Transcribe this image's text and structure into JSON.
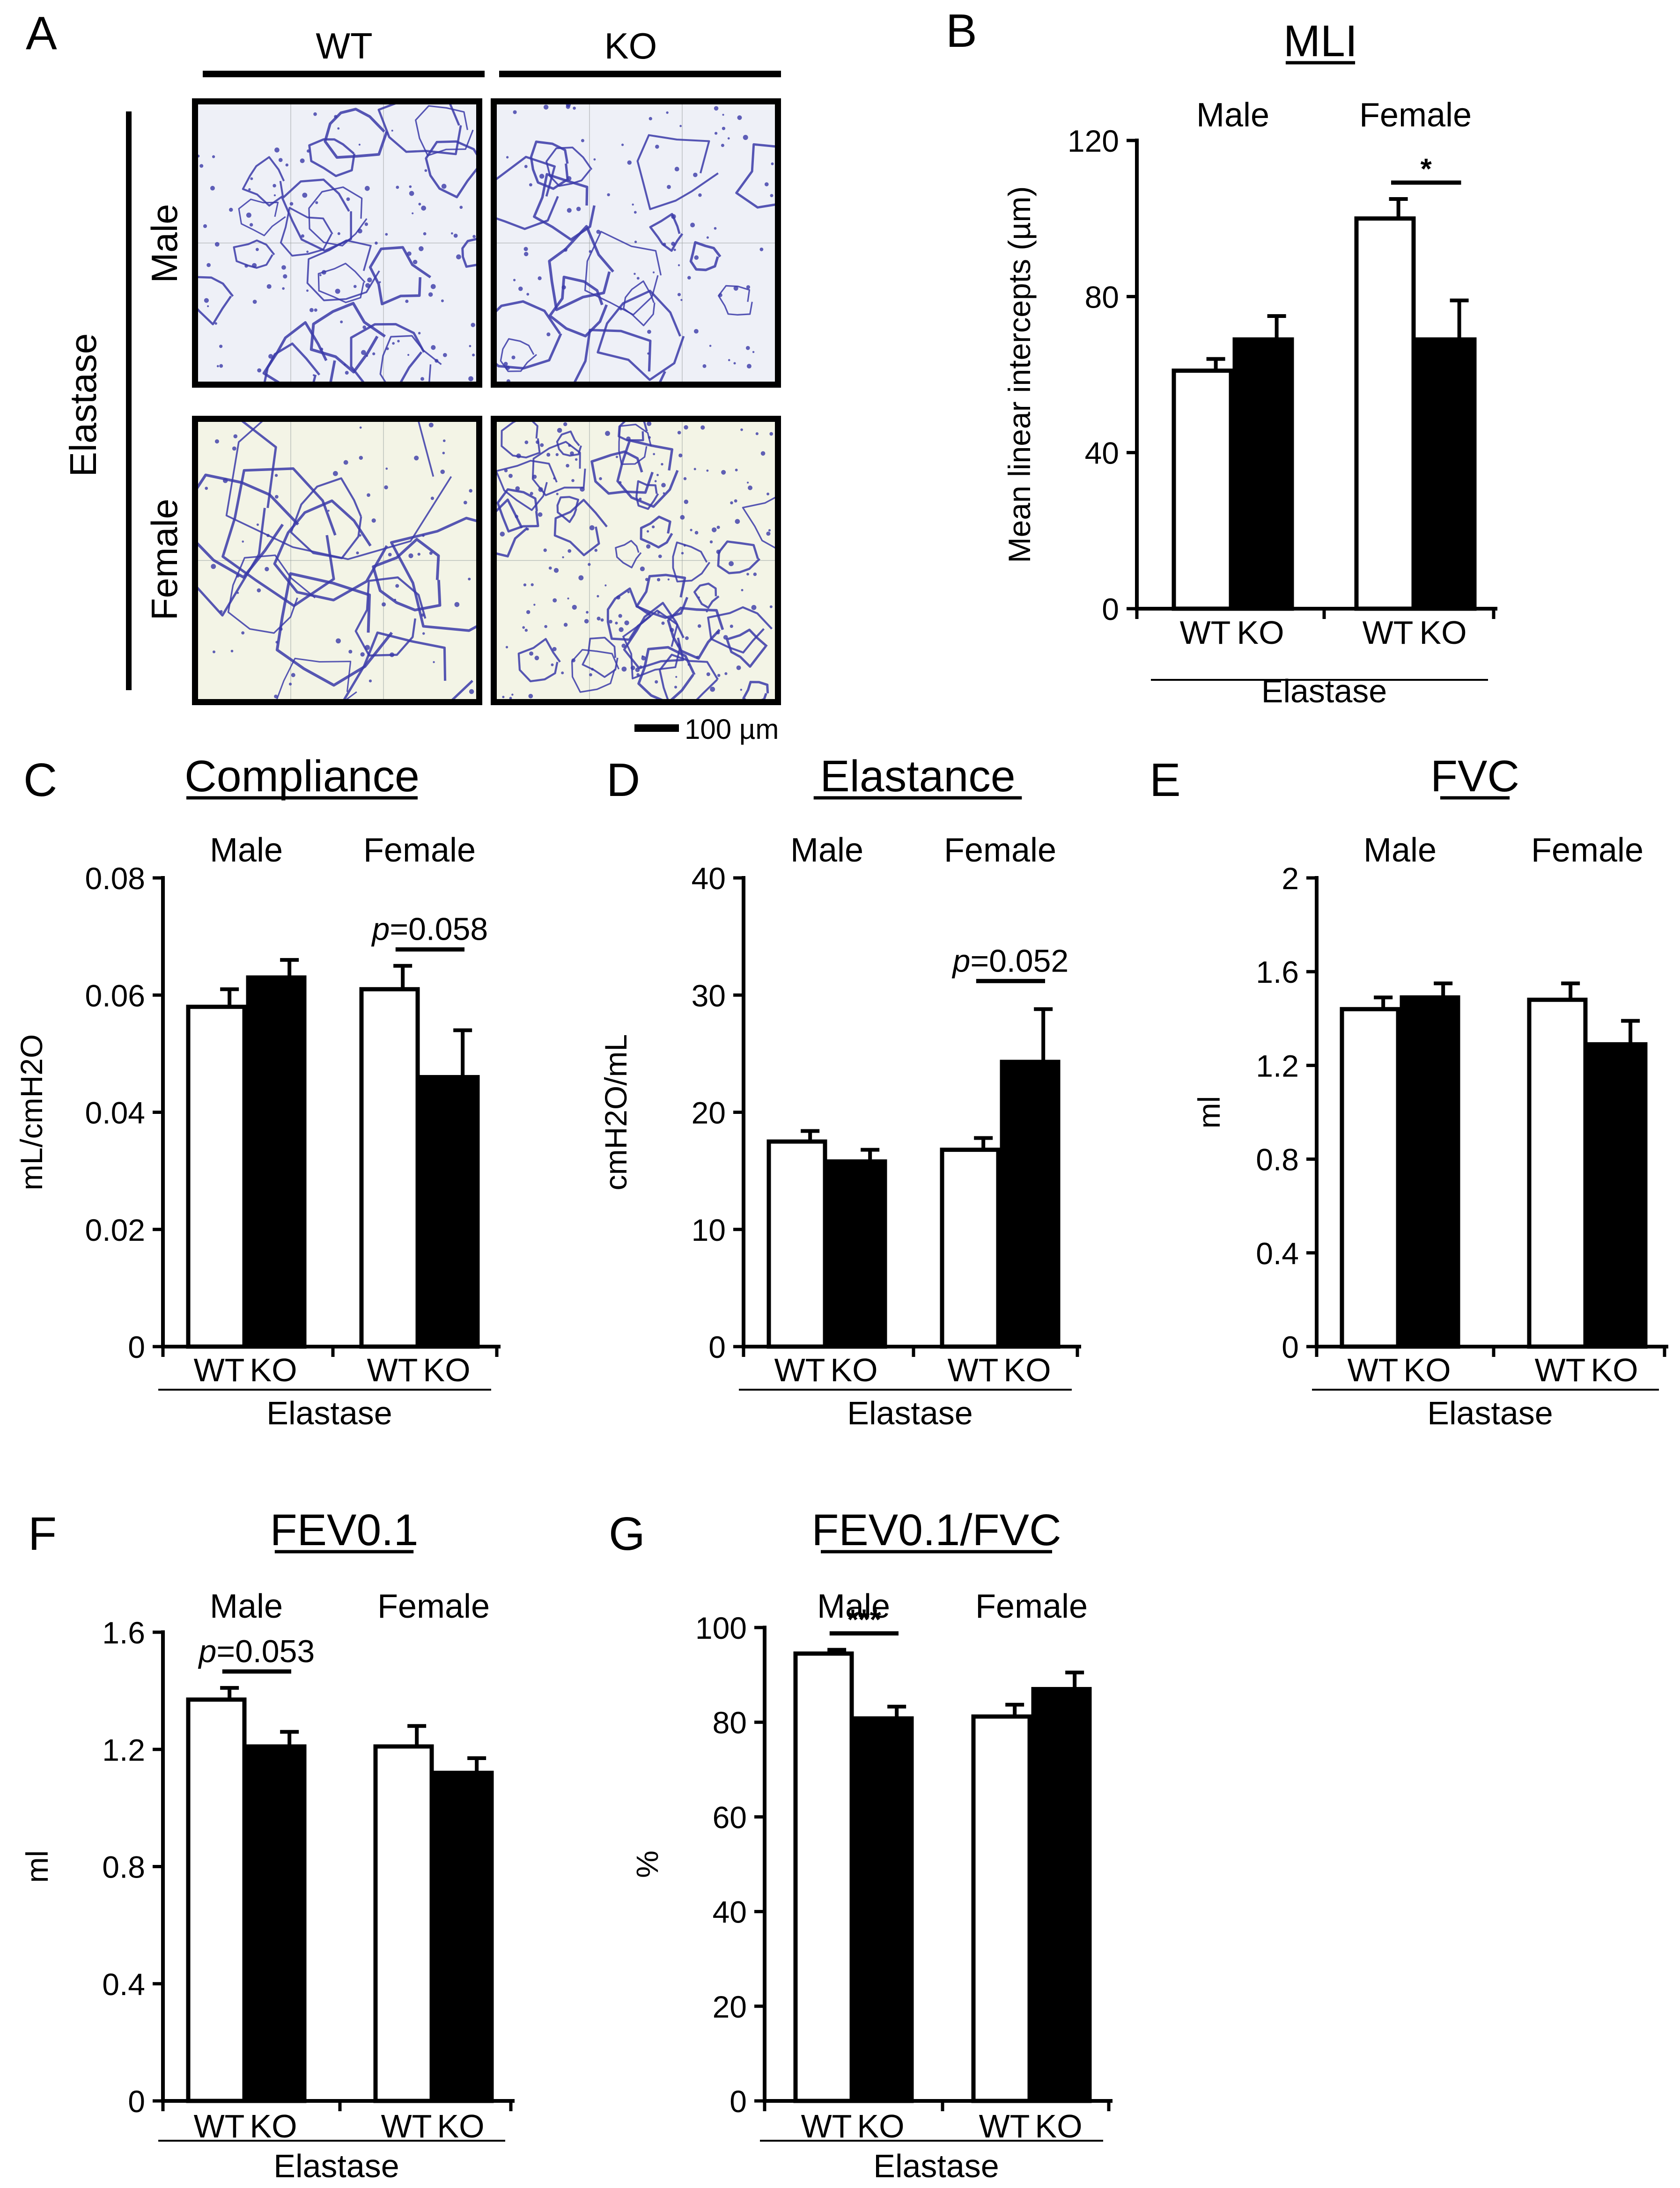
{
  "figure": {
    "background": "#ffffff",
    "ink": "#000000",
    "tissue_stain": "#3a3aa8",
    "male_bg": "#eef0f7",
    "female_bg": "#f3f4e6"
  },
  "panelA": {
    "letter": "A",
    "col_wt": "WT",
    "col_ko": "KO",
    "row_male": "Male",
    "row_female": "Female",
    "treatment": "Elastase",
    "scale_bar": "100 µm"
  },
  "chart_data": [
    {
      "id": "B",
      "letter": "B",
      "type": "bar",
      "title": "MLI",
      "ylabel": "Mean linear intercepts (µm)",
      "ylim": [
        0,
        120
      ],
      "yticks": [
        "0",
        "40",
        "80",
        "120"
      ],
      "groups": [
        "Male",
        "Female"
      ],
      "categories": [
        "WT",
        "KO"
      ],
      "treatment": "Elastase",
      "values": [
        [
          61,
          69
        ],
        [
          100,
          69
        ]
      ],
      "errors": [
        [
          3,
          6
        ],
        [
          5,
          10
        ]
      ],
      "significance": [
        {
          "group": 1,
          "text": "*"
        }
      ]
    },
    {
      "id": "C",
      "letter": "C",
      "type": "bar",
      "title": "Compliance",
      "ylabel": "mL/cmH2O",
      "ylim": [
        0,
        0.08
      ],
      "yticks": [
        "0",
        "0.02",
        "0.04",
        "0.06",
        "0.08"
      ],
      "groups": [
        "Male",
        "Female"
      ],
      "categories": [
        "WT",
        "KO"
      ],
      "treatment": "Elastase",
      "values": [
        [
          0.058,
          0.063
        ],
        [
          0.061,
          0.046
        ]
      ],
      "errors": [
        [
          0.003,
          0.003
        ],
        [
          0.004,
          0.008
        ]
      ],
      "significance": [
        {
          "group": 1,
          "text_italic": "p",
          "text": "=0.058"
        }
      ]
    },
    {
      "id": "D",
      "letter": "D",
      "type": "bar",
      "title": "Elastance",
      "ylabel": "cmH2O/mL",
      "ylim": [
        0,
        40
      ],
      "yticks": [
        "0",
        "10",
        "20",
        "30",
        "40"
      ],
      "groups": [
        "Male",
        "Female"
      ],
      "categories": [
        "WT",
        "KO"
      ],
      "treatment": "Elastase",
      "values": [
        [
          17.5,
          15.8
        ],
        [
          16.8,
          24.3
        ]
      ],
      "errors": [
        [
          0.9,
          1.0
        ],
        [
          1.0,
          4.5
        ]
      ],
      "significance": [
        {
          "group": 1,
          "text_italic": "p",
          "text": "=0.052"
        }
      ]
    },
    {
      "id": "E",
      "letter": "E",
      "type": "bar",
      "title": "FVC",
      "ylabel": "ml",
      "ylim": [
        0,
        2
      ],
      "yticks": [
        "0",
        "0.4",
        "0.8",
        "1.2",
        "1.6",
        "2"
      ],
      "groups": [
        "Male",
        "Female"
      ],
      "categories": [
        "WT",
        "KO"
      ],
      "treatment": "Elastase",
      "values": [
        [
          1.44,
          1.49
        ],
        [
          1.48,
          1.29
        ]
      ],
      "errors": [
        [
          0.05,
          0.06
        ],
        [
          0.07,
          0.1
        ]
      ],
      "significance": []
    },
    {
      "id": "F",
      "letter": "F",
      "type": "bar",
      "title": "FEV0.1",
      "ylabel": "ml",
      "ylim": [
        0,
        1.6
      ],
      "yticks": [
        "0",
        "0.4",
        "0.8",
        "1.2",
        "1.6"
      ],
      "groups": [
        "Male",
        "Female"
      ],
      "categories": [
        "WT",
        "KO"
      ],
      "treatment": "Elastase",
      "values": [
        [
          1.37,
          1.21
        ],
        [
          1.21,
          1.12
        ]
      ],
      "errors": [
        [
          0.04,
          0.05
        ],
        [
          0.07,
          0.05
        ]
      ],
      "significance": [
        {
          "group": 0,
          "text_italic": "p",
          "text": "=0.053"
        }
      ]
    },
    {
      "id": "G",
      "letter": "G",
      "type": "bar",
      "title": "FEV0.1/FVC",
      "ylabel": "%",
      "ylim": [
        0,
        100
      ],
      "yticks": [
        "0",
        "20",
        "40",
        "60",
        "80",
        "100"
      ],
      "groups": [
        "Male",
        "Female"
      ],
      "categories": [
        "WT",
        "KO"
      ],
      "treatment": "Elastase",
      "values": [
        [
          94.5,
          80.8
        ],
        [
          81.2,
          87
        ]
      ],
      "errors": [
        [
          0.8,
          2.5
        ],
        [
          2.5,
          3.5
        ]
      ],
      "significance": [
        {
          "group": 0,
          "text": "***"
        }
      ]
    }
  ]
}
